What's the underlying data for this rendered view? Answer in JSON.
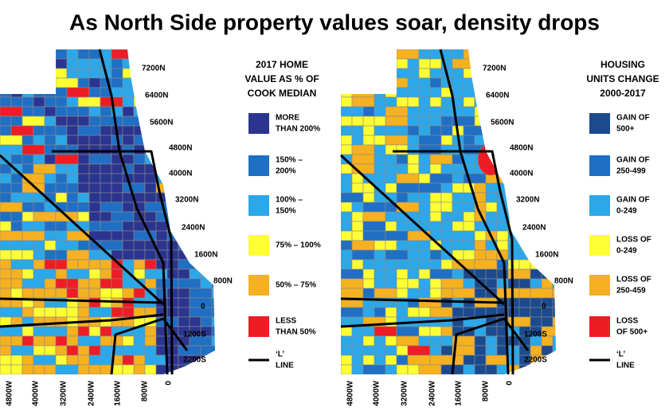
{
  "title": "As North Side property values soar, density drops",
  "maps": [
    {
      "legend_title": [
        "2017 HOME",
        "VALUE AS % OF",
        "COOK MEDIAN"
      ],
      "legend": [
        {
          "label": [
            "MORE",
            "THAN 200%"
          ],
          "color": "#2b3590"
        },
        {
          "label": [
            "150% –",
            "200%"
          ],
          "color": "#1f6fc4"
        },
        {
          "label": [
            "100% –",
            "150%"
          ],
          "color": "#2aa8ea"
        },
        {
          "label": [
            "75% – 100%"
          ],
          "color": "#ffff33"
        },
        {
          "label": [
            "50% – 75%"
          ],
          "color": "#f5b120"
        },
        {
          "label": [
            "LESS",
            "THAN 50%"
          ],
          "color": "#ee1c25"
        }
      ],
      "line_label": [
        "‘L’",
        "LINE"
      ],
      "north_labels": [
        "7200N",
        "6400N",
        "5600N",
        "4800N",
        "4000N",
        "3200N",
        "2400N",
        "1600N",
        "800N",
        "0",
        "1200S",
        "2200S"
      ],
      "west_labels": [
        "4800W",
        "4000W",
        "3200W",
        "2400W",
        "1600W",
        "800W",
        "0"
      ]
    },
    {
      "legend_title": [
        "HOUSING",
        "UNITS CHANGE",
        "2000-2017"
      ],
      "legend": [
        {
          "label": [
            "GAIN OF",
            "500+"
          ],
          "color": "#1b4a8e"
        },
        {
          "label": [
            "GAIN OF",
            "250-499"
          ],
          "color": "#1f6fc4"
        },
        {
          "label": [
            "GAIN OF",
            "0-249"
          ],
          "color": "#2aa8ea"
        },
        {
          "label": [
            "LOSS OF",
            "0-249"
          ],
          "color": "#ffff33"
        },
        {
          "label": [
            "LOSS OF",
            "250-459"
          ],
          "color": "#f5b120"
        },
        {
          "label": [
            "LOSS",
            "OF 500+"
          ],
          "color": "#ee1c25"
        }
      ],
      "line_label": [
        "‘L’",
        "LINE"
      ],
      "north_labels": [
        "7200N",
        "6400N",
        "5600N",
        "4800N",
        "4000N",
        "3200N",
        "2400N",
        "1600N",
        "800N",
        "0",
        "1200S",
        "2200S"
      ],
      "west_labels": [
        "4800W",
        "4000W",
        "3200W",
        "2400W",
        "1600W",
        "800W",
        "0"
      ]
    }
  ]
}
